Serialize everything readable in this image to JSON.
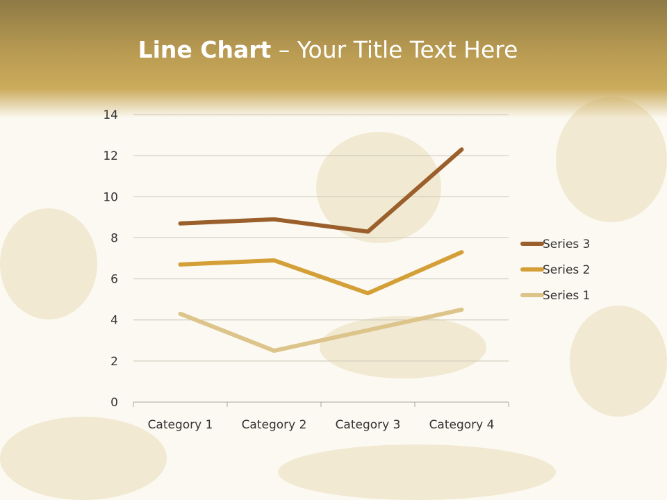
{
  "slide": {
    "title_bold": "Line Chart",
    "title_rest": " – Your Title Text Here"
  },
  "chart_data": {
    "type": "line",
    "stacked": true,
    "categories": [
      "Category 1",
      "Category 2",
      "Category 3",
      "Category 4"
    ],
    "series": [
      {
        "name": "Series 1",
        "values": [
          4.3,
          2.5,
          3.5,
          4.5
        ],
        "color": "#dcc48a"
      },
      {
        "name": "Series 2",
        "values": [
          2.4,
          4.4,
          1.8,
          2.8
        ],
        "color": "#d49f37"
      },
      {
        "name": "Series 3",
        "values": [
          2,
          2,
          3,
          5
        ],
        "color": "#9b5f2c"
      }
    ],
    "ylim": [
      0,
      14
    ],
    "yticks": [
      "0",
      "2",
      "4",
      "6",
      "8",
      "10",
      "12",
      "14"
    ],
    "grid": true,
    "legend": "right",
    "legend_order": [
      "Series 3",
      "Series 2",
      "Series 1"
    ]
  }
}
